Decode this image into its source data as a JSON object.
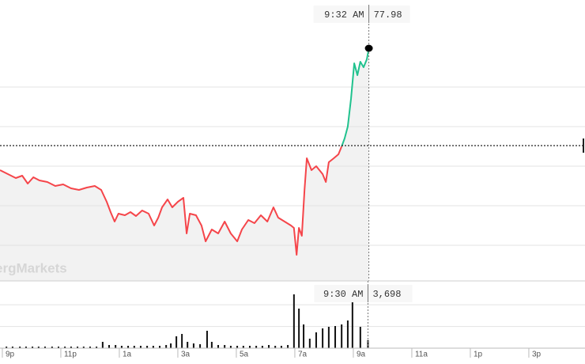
{
  "chart_data": [
    {
      "type": "line",
      "watermark": "ergMarkets",
      "crosshair_label": "9:32 AM",
      "x": [
        20.92,
        21.19,
        21.46,
        21.68,
        21.87,
        22.06,
        22.27,
        22.54,
        22.81,
        23.08,
        23.35,
        23.62,
        23.89,
        24.16,
        24.38,
        24.57,
        24.7,
        24.84,
        24.97,
        25.19,
        25.38,
        25.57,
        25.78,
        26,
        26.19,
        26.33,
        26.46,
        26.65,
        26.81,
        27,
        27.19,
        27.3,
        27.41,
        27.62,
        27.81,
        27.95,
        28.16,
        28.38,
        28.6,
        28.81,
        29.03,
        29.19,
        29.41,
        29.62,
        29.84,
        30.06,
        30.27,
        30.43,
        30.65,
        30.87,
        30.97,
        31.06,
        31.14,
        31.24,
        31.33,
        31.41,
        31.57,
        31.73,
        31.95,
        32.06,
        32.16,
        32.33,
        32.49,
        32.6,
        32.7,
        32.81,
        32.92,
        33.03,
        33.14,
        33.24,
        33.35,
        33.46,
        33.53
      ],
      "series": [
        {
          "color": "#f5454a",
          "up_color": "#21c28e",
          "values": [
            74.9,
            74.8,
            74.7,
            74.76,
            74.56,
            74.72,
            74.64,
            74.6,
            74.5,
            74.54,
            74.44,
            74.4,
            74.46,
            74.5,
            74.4,
            74.1,
            73.84,
            73.6,
            73.8,
            73.76,
            73.84,
            73.74,
            73.88,
            73.8,
            73.5,
            73.7,
            73.96,
            74.16,
            73.96,
            74.1,
            74.2,
            73.3,
            73.8,
            73.76,
            73.5,
            73.1,
            73.4,
            73.3,
            73.6,
            73.3,
            73.1,
            73.4,
            73.64,
            73.56,
            73.76,
            73.6,
            73.96,
            73.7,
            73.6,
            73.5,
            73.44,
            72.76,
            73.44,
            73.24,
            74.4,
            75.2,
            74.9,
            75.0,
            74.8,
            74.6,
            75.1,
            75.2,
            75.3,
            75.5,
            75.7,
            76.0,
            76.7,
            77.6,
            77.3,
            77.64,
            77.5,
            77.7,
            77.98
          ]
        }
      ],
      "reference_line": 75.52,
      "xlim": [
        20.92,
        40.92
      ],
      "ylim": [
        72.1,
        79.2
      ],
      "yticks": [
        73,
        74,
        75,
        76,
        77
      ],
      "grid": true
    },
    {
      "type": "bar",
      "crosshair_label": "9:30 AM",
      "x": [
        21.14,
        21.35,
        21.6,
        21.81,
        22.03,
        22.24,
        22.46,
        22.7,
        22.92,
        23.14,
        23.35,
        23.57,
        23.78,
        24.0,
        24.22,
        24.43,
        24.65,
        24.87,
        25.08,
        25.3,
        25.51,
        25.73,
        25.95,
        26.16,
        26.38,
        26.6,
        26.76,
        26.95,
        27.14,
        27.33,
        27.54,
        27.76,
        28.0,
        28.16,
        28.38,
        28.6,
        28.81,
        29.03,
        29.24,
        29.46,
        29.68,
        29.89,
        30.11,
        30.33,
        30.54,
        30.76,
        30.97,
        31.14,
        31.3,
        31.51,
        31.73,
        31.95,
        32.16,
        32.38,
        32.6,
        32.81,
        32.97,
        33.24,
        33.5
      ],
      "values": [
        730,
        730,
        730,
        730,
        730,
        730,
        730,
        730,
        730,
        730,
        730,
        730,
        730,
        730,
        730,
        2920,
        1460,
        1460,
        1090,
        1090,
        1090,
        1090,
        1090,
        1090,
        1090,
        1460,
        2190,
        5470,
        6560,
        2920,
        2190,
        1820,
        8020,
        2920,
        1460,
        1460,
        1090,
        1090,
        1090,
        1090,
        1090,
        1090,
        1460,
        1090,
        1090,
        1460,
        24800,
        18240,
        10940,
        4380,
        7290,
        9120,
        9850,
        10210,
        10940,
        12760,
        21150,
        9850,
        3698
      ],
      "value_labels": [
        null,
        null,
        null,
        null,
        null,
        null,
        null,
        null,
        null,
        null,
        null,
        null,
        null,
        null,
        null,
        null,
        null,
        null,
        null,
        null,
        null,
        null,
        null,
        null,
        null,
        null,
        null,
        null,
        null,
        null,
        null,
        null,
        null,
        null,
        null,
        null,
        null,
        null,
        null,
        null,
        null,
        null,
        null,
        null,
        null,
        null,
        null,
        null,
        null,
        null,
        null,
        null,
        null,
        null,
        null,
        null,
        null,
        null,
        "3,698"
      ],
      "color": "#111111",
      "xlim": [
        20.92,
        40.92
      ],
      "ylim": [
        0,
        31000
      ],
      "yticks": [
        10000,
        20000
      ],
      "xticks": [
        {
          "value": 21,
          "label": "9p"
        },
        {
          "value": 23,
          "label": "11p"
        },
        {
          "value": 25,
          "label": "1a"
        },
        {
          "value": 27,
          "label": "3a"
        },
        {
          "value": 29,
          "label": "5a"
        },
        {
          "value": 31,
          "label": "7a"
        },
        {
          "value": 33,
          "label": "9a"
        },
        {
          "value": 35,
          "label": "11a"
        },
        {
          "value": 37,
          "label": "1p"
        },
        {
          "value": 39,
          "label": "3p"
        }
      ],
      "grid": true
    }
  ]
}
